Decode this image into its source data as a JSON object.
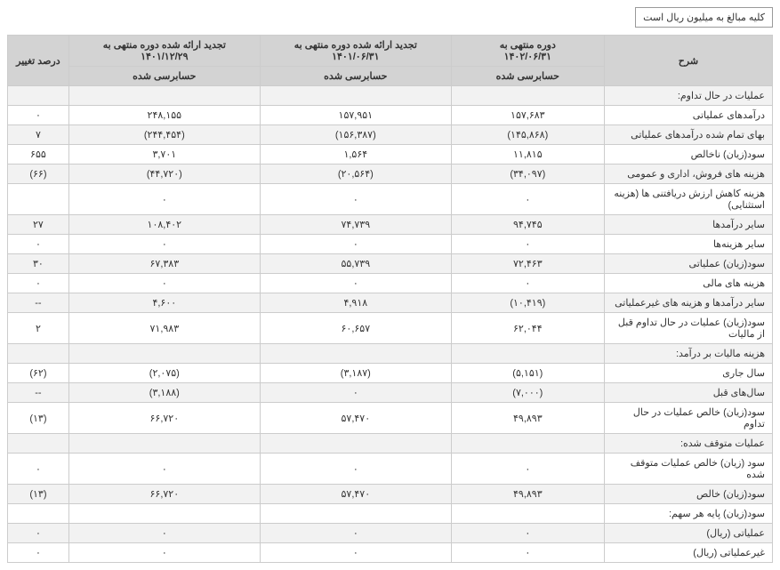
{
  "note": "کلیه مبالغ به میلیون ریال است",
  "headers": {
    "desc": "شرح",
    "p1_top": "دوره منتهی به",
    "p1_date": "۱۴۰۲/۰۶/۳۱",
    "p2_top": "تجدید ارائه شده دوره منتهی به",
    "p2_date": "۱۴۰۱/۰۶/۳۱",
    "p3_top": "تجدید ارائه شده دوره منتهی به",
    "p3_date": "۱۴۰۱/۱۲/۲۹",
    "audited": "حسابرسی شده",
    "chg": "درصد تغییر"
  },
  "rows": [
    {
      "desc": "عملیات در حال تداوم:",
      "p1": "",
      "p2": "",
      "p3": "",
      "chg": "",
      "alt": true,
      "section": true
    },
    {
      "desc": "درآمدهای عملیاتی",
      "p1": "۱۵۷,۶۸۳",
      "p2": "۱۵۷,۹۵۱",
      "p3": "۲۴۸,۱۵۵",
      "chg": "۰",
      "alt": false
    },
    {
      "desc": "بهای تمام شده درآمدهای عملیاتی",
      "p1": "(۱۴۵,۸۶۸)",
      "p2": "(۱۵۶,۳۸۷)",
      "p3": "(۲۴۴,۴۵۴)",
      "chg": "۷",
      "alt": true
    },
    {
      "desc": "سود(زیان) ناخالص",
      "p1": "۱۱,۸۱۵",
      "p2": "۱,۵۶۴",
      "p3": "۳,۷۰۱",
      "chg": "۶۵۵",
      "alt": false
    },
    {
      "desc": "هزینه های فروش، اداری و عمومی",
      "p1": "(۳۴,۰۹۷)",
      "p2": "(۲۰,۵۶۴)",
      "p3": "(۴۴,۷۲۰)",
      "chg": "(۶۶)",
      "alt": true
    },
    {
      "desc": "هزینه کاهش ارزش دریافتنی ها (هزینه استثنایی)",
      "p1": "۰",
      "p2": "۰",
      "p3": "۰",
      "chg": "",
      "alt": false
    },
    {
      "desc": "سایر درآمدها",
      "p1": "۹۴,۷۴۵",
      "p2": "۷۴,۷۳۹",
      "p3": "۱۰۸,۴۰۲",
      "chg": "۲۷",
      "alt": true
    },
    {
      "desc": "سایر هزینه‌ها",
      "p1": "۰",
      "p2": "۰",
      "p3": "۰",
      "chg": "۰",
      "alt": false
    },
    {
      "desc": "سود(زیان) عملیاتی",
      "p1": "۷۲,۴۶۳",
      "p2": "۵۵,۷۳۹",
      "p3": "۶۷,۳۸۳",
      "chg": "۳۰",
      "alt": true
    },
    {
      "desc": "هزینه های مالی",
      "p1": "۰",
      "p2": "۰",
      "p3": "۰",
      "chg": "۰",
      "alt": false
    },
    {
      "desc": "سایر درآمدها و هزینه های غیرعملیاتی",
      "p1": "(۱۰,۴۱۹)",
      "p2": "۴,۹۱۸",
      "p3": "۴,۶۰۰",
      "chg": "--",
      "alt": true
    },
    {
      "desc": "سود(زیان) عملیات در حال تداوم قبل از مالیات",
      "p1": "۶۲,۰۴۴",
      "p2": "۶۰,۶۵۷",
      "p3": "۷۱,۹۸۳",
      "chg": "۲",
      "alt": false
    },
    {
      "desc": "هزینه مالیات بر درآمد:",
      "p1": "",
      "p2": "",
      "p3": "",
      "chg": "",
      "alt": true,
      "section": true
    },
    {
      "desc": "سال جاری",
      "p1": "(۵,۱۵۱)",
      "p2": "(۳,۱۸۷)",
      "p3": "(۲,۰۷۵)",
      "chg": "(۶۲)",
      "alt": false
    },
    {
      "desc": "سال‌های قبل",
      "p1": "(۷,۰۰۰)",
      "p2": "۰",
      "p3": "(۳,۱۸۸)",
      "chg": "--",
      "alt": true
    },
    {
      "desc": "سود(زیان) خالص عملیات در حال تداوم",
      "p1": "۴۹,۸۹۳",
      "p2": "۵۷,۴۷۰",
      "p3": "۶۶,۷۲۰",
      "chg": "(۱۳)",
      "alt": false
    },
    {
      "desc": "عملیات متوقف شده:",
      "p1": "",
      "p2": "",
      "p3": "",
      "chg": "",
      "alt": true,
      "section": true
    },
    {
      "desc": "سود (زیان) خالص عملیات متوقف شده",
      "p1": "۰",
      "p2": "۰",
      "p3": "۰",
      "chg": "۰",
      "alt": false
    },
    {
      "desc": "سود(زیان) خالص",
      "p1": "۴۹,۸۹۳",
      "p2": "۵۷,۴۷۰",
      "p3": "۶۶,۷۲۰",
      "chg": "(۱۳)",
      "alt": true
    },
    {
      "desc": "سود(زیان) پایه هر سهم:",
      "p1": "",
      "p2": "",
      "p3": "",
      "chg": "",
      "alt": false,
      "section": true
    },
    {
      "desc": "عملیاتی (ریال)",
      "p1": "۰",
      "p2": "۰",
      "p3": "۰",
      "chg": "۰",
      "alt": true
    },
    {
      "desc": "غیرعملیاتی (ریال)",
      "p1": "۰",
      "p2": "۰",
      "p3": "۰",
      "chg": "۰",
      "alt": false
    }
  ]
}
